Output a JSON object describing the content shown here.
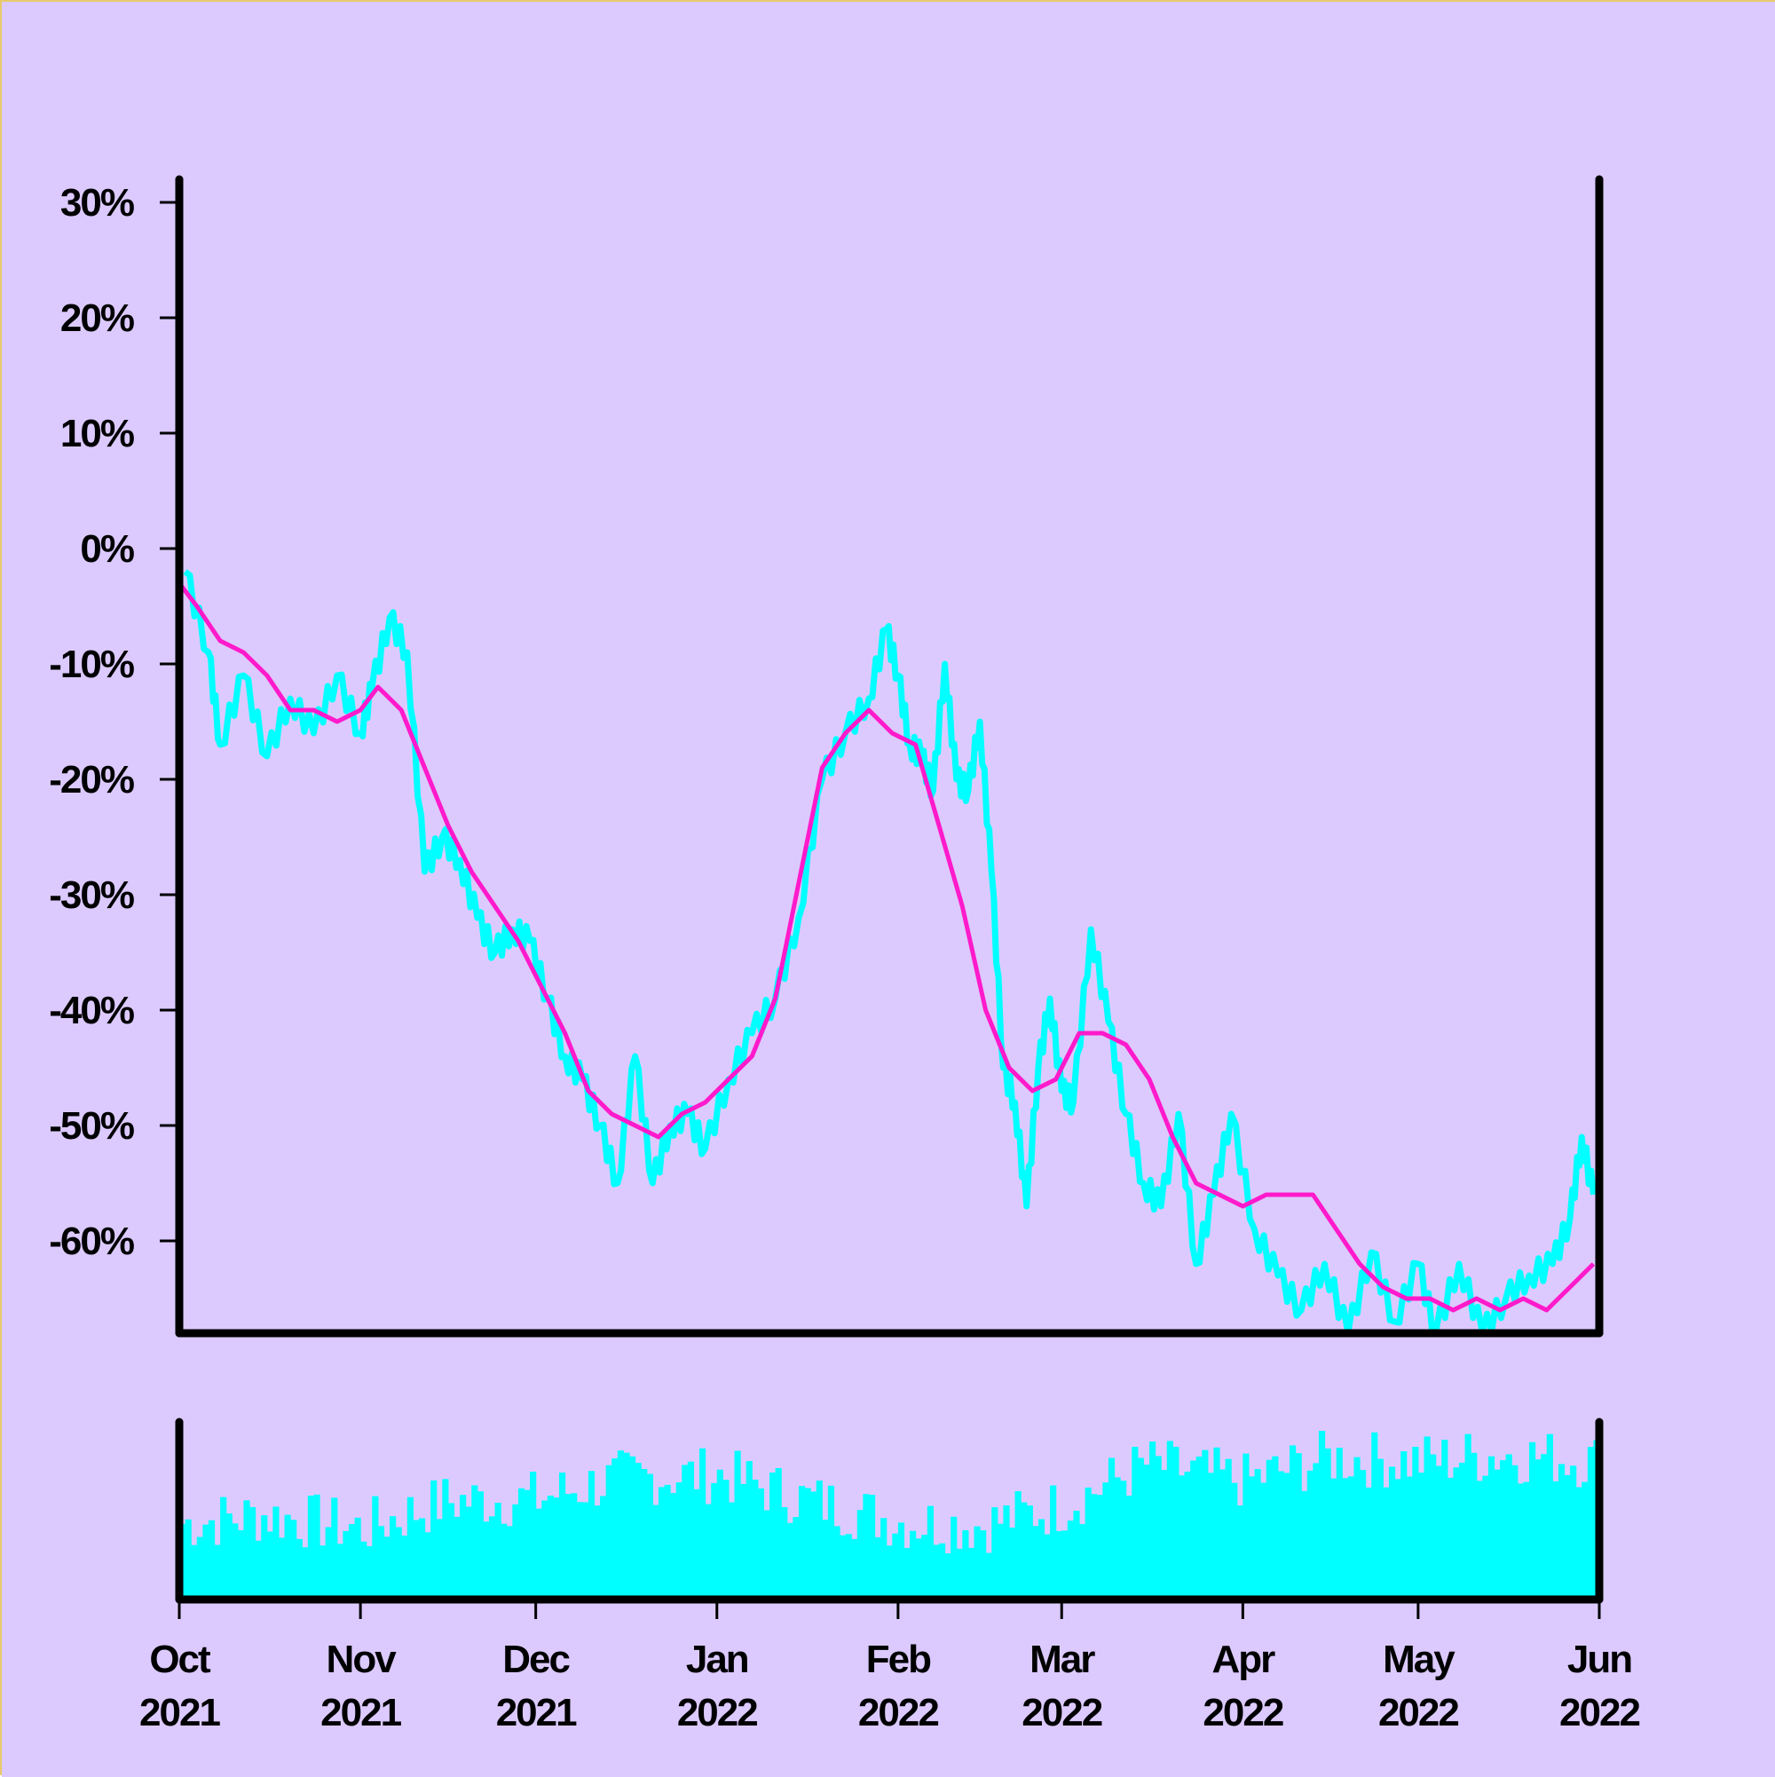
{
  "style": {
    "background": "#dccaff",
    "frame": "#e8c96a",
    "axis": "#000000",
    "price_color": "#00ffff",
    "ma_color": "#ff1acb",
    "volume_color": "#00ffff"
  },
  "chart_data": {
    "type": "line",
    "title": "",
    "xlabel": "",
    "ylabel": "",
    "x_range": [
      "2021-10-01",
      "2022-06-01"
    ],
    "ylim": [
      -0.68,
      0.32
    ],
    "y_ticks": [
      0.3,
      0.2,
      0.1,
      0.0,
      -0.1,
      -0.2,
      -0.3,
      -0.4,
      -0.5,
      -0.6
    ],
    "y_tick_labels": [
      "30%",
      "20%",
      "10%",
      "0%",
      "-10%",
      "-20%",
      "-30%",
      "-40%",
      "-50%",
      "-60%"
    ],
    "x_ticks": [
      {
        "date": "2021-10-01",
        "month": "Oct",
        "year": "2021"
      },
      {
        "date": "2021-11-01",
        "month": "Nov",
        "year": "2021"
      },
      {
        "date": "2021-12-01",
        "month": "Dec",
        "year": "2021"
      },
      {
        "date": "2022-01-01",
        "month": "Jan",
        "year": "2022"
      },
      {
        "date": "2022-02-01",
        "month": "Feb",
        "year": "2022"
      },
      {
        "date": "2022-03-01",
        "month": "Mar",
        "year": "2022"
      },
      {
        "date": "2022-04-01",
        "month": "Apr",
        "year": "2022"
      },
      {
        "date": "2022-05-01",
        "month": "May",
        "year": "2022"
      },
      {
        "date": "2022-06-01",
        "month": "Jun",
        "year": "2022"
      }
    ],
    "grid": false,
    "series": [
      {
        "x": [
          "2021-10-02",
          "2021-10-06",
          "2021-10-08",
          "2021-10-12",
          "2021-10-16",
          "2021-10-20",
          "2021-10-24",
          "2021-10-28",
          "2021-11-01",
          "2021-11-03",
          "2021-11-06",
          "2021-11-09",
          "2021-11-12",
          "2021-11-15",
          "2021-11-18",
          "2021-11-21",
          "2021-11-24",
          "2021-11-27",
          "2021-11-30",
          "2021-12-03",
          "2021-12-06",
          "2021-12-09",
          "2021-12-12",
          "2021-12-15",
          "2021-12-18",
          "2021-12-21",
          "2021-12-24",
          "2021-12-27",
          "2021-12-30",
          "2022-01-03",
          "2022-01-07",
          "2022-01-11",
          "2022-01-15",
          "2022-01-19",
          "2022-01-23",
          "2022-01-27",
          "2022-01-30",
          "2022-02-01",
          "2022-02-03",
          "2022-02-05",
          "2022-02-07",
          "2022-02-09",
          "2022-02-11",
          "2022-02-13",
          "2022-02-15",
          "2022-02-17",
          "2022-02-19",
          "2022-02-21",
          "2022-02-23",
          "2022-02-25",
          "2022-02-27",
          "2022-03-01",
          "2022-03-03",
          "2022-03-06",
          "2022-03-09",
          "2022-03-12",
          "2022-03-15",
          "2022-03-18",
          "2022-03-21",
          "2022-03-24",
          "2022-03-27",
          "2022-03-30",
          "2022-04-03",
          "2022-04-07",
          "2022-04-11",
          "2022-04-15",
          "2022-04-19",
          "2022-04-23",
          "2022-04-27",
          "2022-05-01",
          "2022-05-04",
          "2022-05-08",
          "2022-05-12",
          "2022-05-16",
          "2022-05-20",
          "2022-05-24",
          "2022-05-27",
          "2022-05-29",
          "2022-05-31"
        ],
        "values": [
          -0.02,
          -0.09,
          -0.17,
          -0.11,
          -0.18,
          -0.13,
          -0.16,
          -0.11,
          -0.16,
          -0.12,
          -0.06,
          -0.09,
          -0.28,
          -0.25,
          -0.27,
          -0.32,
          -0.35,
          -0.33,
          -0.34,
          -0.39,
          -0.44,
          -0.46,
          -0.5,
          -0.55,
          -0.44,
          -0.55,
          -0.5,
          -0.49,
          -0.52,
          -0.46,
          -0.42,
          -0.39,
          -0.32,
          -0.2,
          -0.16,
          -0.13,
          -0.07,
          -0.11,
          -0.17,
          -0.18,
          -0.21,
          -0.1,
          -0.2,
          -0.21,
          -0.15,
          -0.28,
          -0.45,
          -0.48,
          -0.57,
          -0.45,
          -0.39,
          -0.47,
          -0.48,
          -0.33,
          -0.41,
          -0.49,
          -0.55,
          -0.57,
          -0.49,
          -0.62,
          -0.56,
          -0.49,
          -0.59,
          -0.63,
          -0.66,
          -0.62,
          -0.68,
          -0.61,
          -0.67,
          -0.62,
          -0.68,
          -0.62,
          -0.68,
          -0.65,
          -0.63,
          -0.62,
          -0.58,
          -0.51,
          -0.56
        ]
      },
      {
        "x": [
          "2021-10-01",
          "2021-10-04",
          "2021-10-08",
          "2021-10-12",
          "2021-10-16",
          "2021-10-20",
          "2021-10-24",
          "2021-10-28",
          "2021-11-01",
          "2021-11-04",
          "2021-11-08",
          "2021-11-12",
          "2021-11-16",
          "2021-11-20",
          "2021-11-24",
          "2021-11-28",
          "2021-12-02",
          "2021-12-06",
          "2021-12-10",
          "2021-12-14",
          "2021-12-18",
          "2021-12-22",
          "2021-12-26",
          "2021-12-30",
          "2022-01-03",
          "2022-01-07",
          "2022-01-11",
          "2022-01-15",
          "2022-01-19",
          "2022-01-23",
          "2022-01-27",
          "2022-01-31",
          "2022-02-04",
          "2022-02-08",
          "2022-02-12",
          "2022-02-16",
          "2022-02-20",
          "2022-02-24",
          "2022-02-28",
          "2022-03-04",
          "2022-03-08",
          "2022-03-12",
          "2022-03-16",
          "2022-03-20",
          "2022-03-24",
          "2022-03-28",
          "2022-04-01",
          "2022-04-05",
          "2022-04-09",
          "2022-04-13",
          "2022-04-17",
          "2022-04-21",
          "2022-04-25",
          "2022-04-29",
          "2022-05-03",
          "2022-05-07",
          "2022-05-11",
          "2022-05-15",
          "2022-05-19",
          "2022-05-23",
          "2022-05-27",
          "2022-05-31"
        ],
        "values": [
          -0.03,
          -0.05,
          -0.08,
          -0.09,
          -0.11,
          -0.14,
          -0.14,
          -0.15,
          -0.14,
          -0.12,
          -0.14,
          -0.19,
          -0.24,
          -0.28,
          -0.31,
          -0.34,
          -0.38,
          -0.42,
          -0.47,
          -0.49,
          -0.5,
          -0.51,
          -0.49,
          -0.48,
          -0.46,
          -0.44,
          -0.39,
          -0.29,
          -0.19,
          -0.16,
          -0.14,
          -0.16,
          -0.17,
          -0.24,
          -0.31,
          -0.4,
          -0.45,
          -0.47,
          -0.46,
          -0.42,
          -0.42,
          -0.43,
          -0.46,
          -0.51,
          -0.55,
          -0.56,
          -0.57,
          -0.56,
          -0.56,
          -0.56,
          -0.59,
          -0.62,
          -0.64,
          -0.65,
          -0.65,
          -0.66,
          -0.65,
          -0.66,
          -0.65,
          -0.66,
          -0.64,
          -0.62
        ]
      }
    ],
    "volume": {
      "x": [
        "2021-10-01",
        "2021-10-15",
        "2021-11-01",
        "2021-11-15",
        "2021-12-01",
        "2021-12-15",
        "2022-01-01",
        "2022-01-15",
        "2022-02-01",
        "2022-02-15",
        "2022-03-01",
        "2022-03-15",
        "2022-04-01",
        "2022-04-15",
        "2022-05-01",
        "2022-05-15",
        "2022-06-01"
      ],
      "values": [
        0.45,
        0.5,
        0.42,
        0.58,
        0.6,
        0.72,
        0.74,
        0.6,
        0.46,
        0.44,
        0.56,
        0.8,
        0.7,
        0.84,
        0.82,
        0.86,
        0.82
      ]
    }
  }
}
